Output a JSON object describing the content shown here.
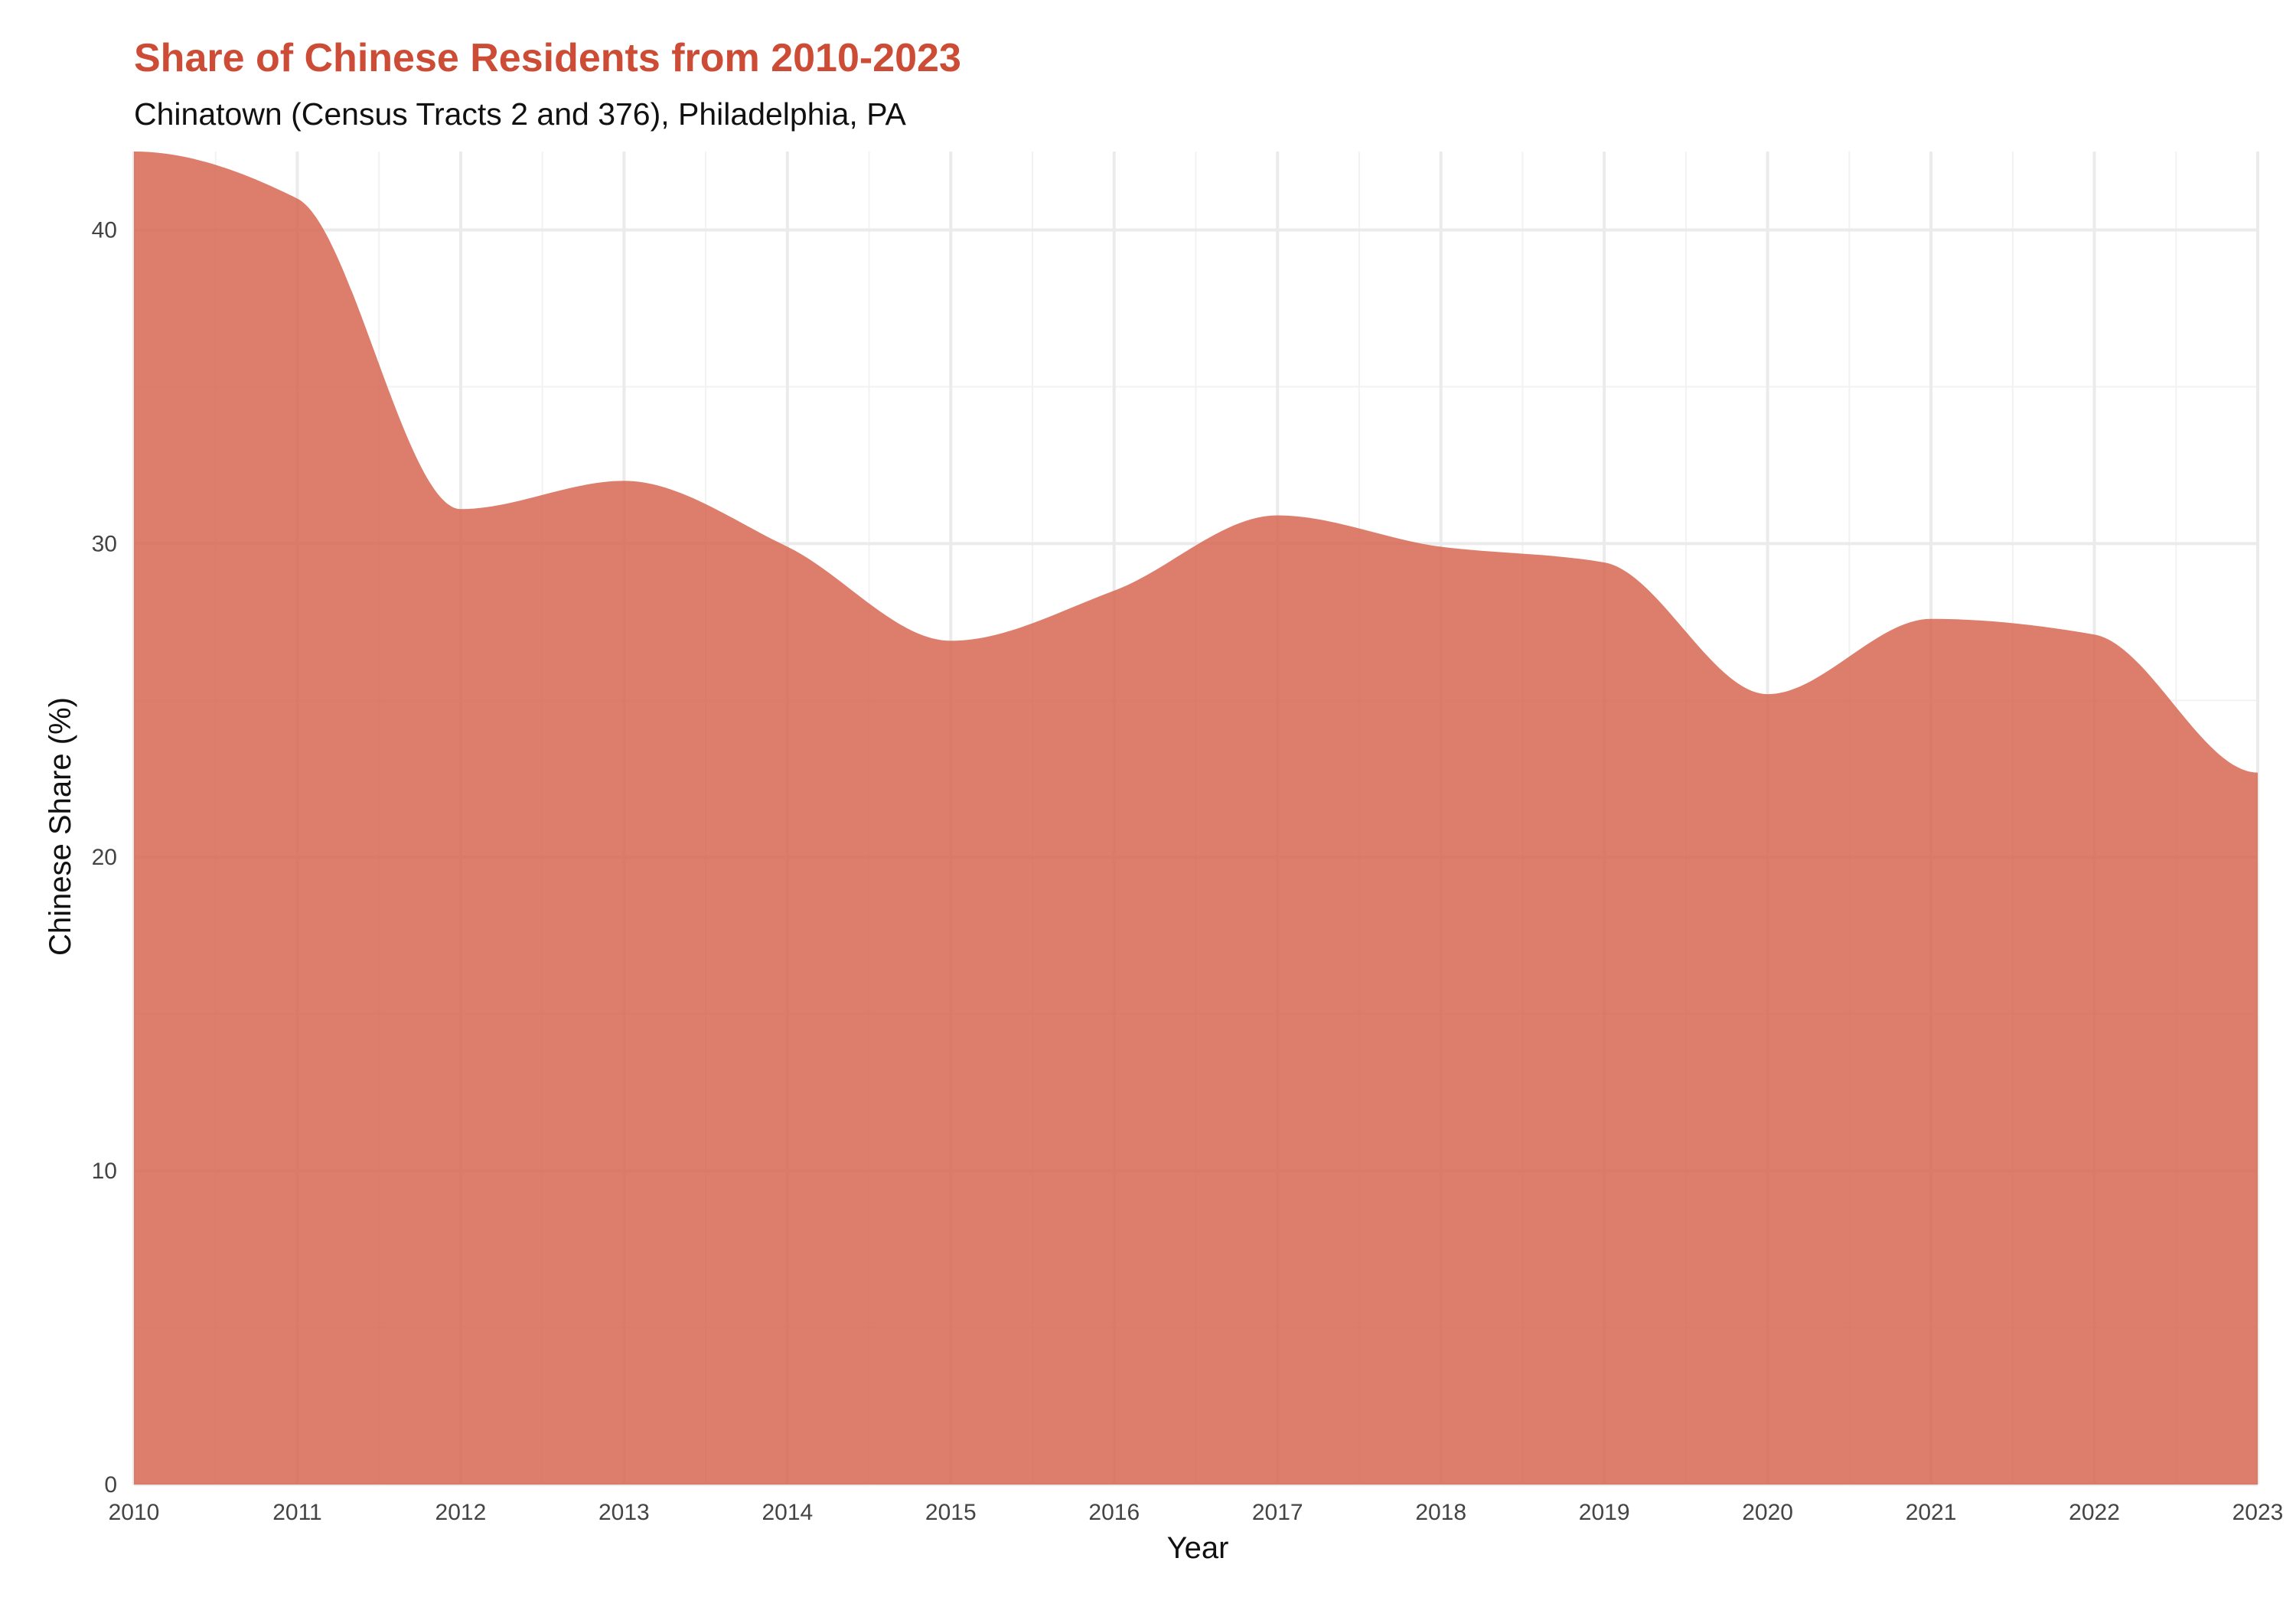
{
  "chart_data": {
    "type": "area",
    "title": "Share of Chinese Residents from 2010-2023",
    "subtitle": "Chinatown (Census Tracts 2 and 376), Philadelphia, PA",
    "xlabel": "Year",
    "ylabel": "Chinese Share (%)",
    "x": [
      2010,
      2011,
      2012,
      2013,
      2014,
      2015,
      2016,
      2017,
      2018,
      2019,
      2020,
      2021,
      2022,
      2023
    ],
    "values": [
      42.5,
      41.0,
      31.1,
      32.0,
      29.9,
      26.9,
      28.5,
      30.9,
      29.9,
      29.4,
      25.2,
      27.6,
      27.1,
      22.7
    ],
    "xlim": [
      2010,
      2023
    ],
    "ylim": [
      0,
      42.5
    ],
    "x_ticks": [
      "2010",
      "2011",
      "2012",
      "2013",
      "2014",
      "2015",
      "2016",
      "2017",
      "2018",
      "2019",
      "2020",
      "2021",
      "2022",
      "2023"
    ],
    "y_ticks": [
      "0",
      "10",
      "20",
      "30",
      "40"
    ],
    "grid": true,
    "fill_color": "#D5604A",
    "title_color": "#CC4C35"
  }
}
